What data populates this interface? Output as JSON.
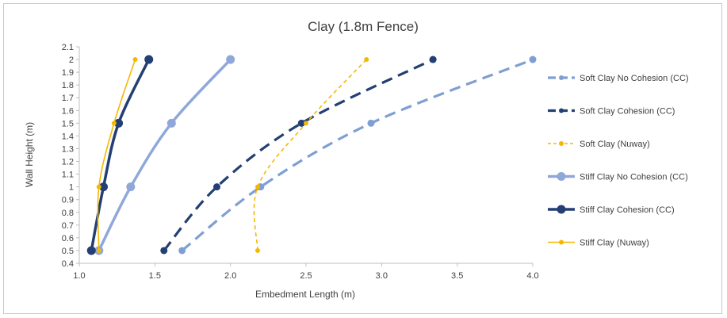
{
  "chart_data": {
    "type": "line",
    "title": "Clay (1.8m Fence)",
    "xlabel": "Embedment Length (m)",
    "ylabel": "Wall Height (m)",
    "xlim": [
      1.0,
      4.0
    ],
    "ylim": [
      0.4,
      2.1
    ],
    "xticks": [
      "1.0",
      "1.5",
      "2.0",
      "2.5",
      "3.0",
      "3.5",
      "4.0"
    ],
    "yticks": [
      "0.4",
      "0.5",
      "0.6",
      "0.7",
      "0.8",
      "0.9",
      "1",
      "1.1",
      "1.2",
      "1.3",
      "1.4",
      "1.5",
      "1.6",
      "1.7",
      "1.8",
      "1.9",
      "2",
      "2.1"
    ],
    "grid": false,
    "legend_position": "right",
    "series": [
      {
        "name": "Soft Clay No Cohesion (CC)",
        "color": "#7F9FD4",
        "dash": "long-dash",
        "marker": "small",
        "points": [
          [
            1.68,
            0.5
          ],
          [
            2.2,
            1.0
          ],
          [
            2.93,
            1.5
          ],
          [
            4.0,
            2.0
          ]
        ]
      },
      {
        "name": "Soft Clay Cohesion (CC)",
        "color": "#233F73",
        "dash": "long-dash",
        "marker": "small",
        "points": [
          [
            1.56,
            0.5
          ],
          [
            1.91,
            1.0
          ],
          [
            2.47,
            1.5
          ],
          [
            3.34,
            2.0
          ]
        ]
      },
      {
        "name": "Soft Clay (Nuway)",
        "color": "#F5B800",
        "dash": "short-dash",
        "marker": "small",
        "points": [
          [
            2.18,
            0.5
          ],
          [
            2.18,
            1.0
          ],
          [
            2.5,
            1.5
          ],
          [
            2.9,
            2.0
          ]
        ]
      },
      {
        "name": "Stiff Clay No Cohesion (CC)",
        "color": "#8FA8D9",
        "dash": "solid",
        "marker": "large",
        "points": [
          [
            1.13,
            0.5
          ],
          [
            1.34,
            1.0
          ],
          [
            1.61,
            1.5
          ],
          [
            2.0,
            2.0
          ]
        ]
      },
      {
        "name": "Stiff Clay Cohesion (CC)",
        "color": "#233F73",
        "dash": "solid",
        "marker": "large",
        "points": [
          [
            1.08,
            0.5
          ],
          [
            1.16,
            1.0
          ],
          [
            1.26,
            1.5
          ],
          [
            1.46,
            2.0
          ]
        ]
      },
      {
        "name": "Stiff Clay (Nuway)",
        "color": "#F5B800",
        "dash": "solid",
        "marker": "small",
        "points": [
          [
            1.13,
            0.5
          ],
          [
            1.13,
            1.0
          ],
          [
            1.23,
            1.5
          ],
          [
            1.37,
            2.0
          ]
        ]
      }
    ]
  }
}
